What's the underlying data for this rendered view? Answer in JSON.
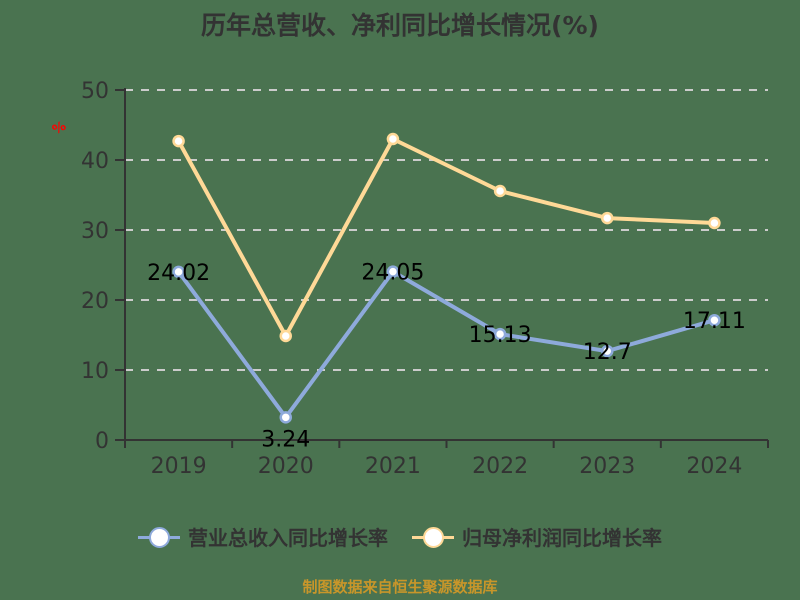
{
  "title": "历年总营收、净利同比增长情况(%)",
  "y_unit_label": "%",
  "legend": [
    {
      "label": "营业总收入同比增长率",
      "color": "#8eaadb"
    },
    {
      "label": "归母净利润同比增长率",
      "color": "#ffd997"
    }
  ],
  "footer": "制图数据来自恒生聚源数据库",
  "colors": {
    "background": "#4a7350",
    "revenue_line": "#8eaadb",
    "profit_line": "#ffd997",
    "axis": "#333333",
    "grid": "#cccccc",
    "footer": "#c8962a"
  },
  "chart_data": {
    "type": "line",
    "title": "历年总营收、净利同比增长情况(%)",
    "xlabel": "",
    "ylabel": "%",
    "categories": [
      "2019",
      "2020",
      "2021",
      "2022",
      "2023",
      "2024"
    ],
    "ylim": [
      0,
      50
    ],
    "yticks": [
      0,
      10,
      20,
      30,
      40,
      50
    ],
    "grid": {
      "y": true,
      "style": "dashed"
    },
    "legend_position": "bottom",
    "series": [
      {
        "name": "营业总收入同比增长率",
        "values": [
          24.02,
          3.24,
          24.05,
          15.13,
          12.7,
          17.11
        ],
        "data_labels": [
          "24.02",
          "3.24",
          "24.05",
          "15.13",
          "12.7",
          "17.11"
        ],
        "color": "#8eaadb"
      },
      {
        "name": "归母净利润同比增长率",
        "values": [
          42.7,
          14.86,
          43.0,
          35.57,
          31.7,
          31.0
        ],
        "color": "#ffd997"
      }
    ]
  }
}
